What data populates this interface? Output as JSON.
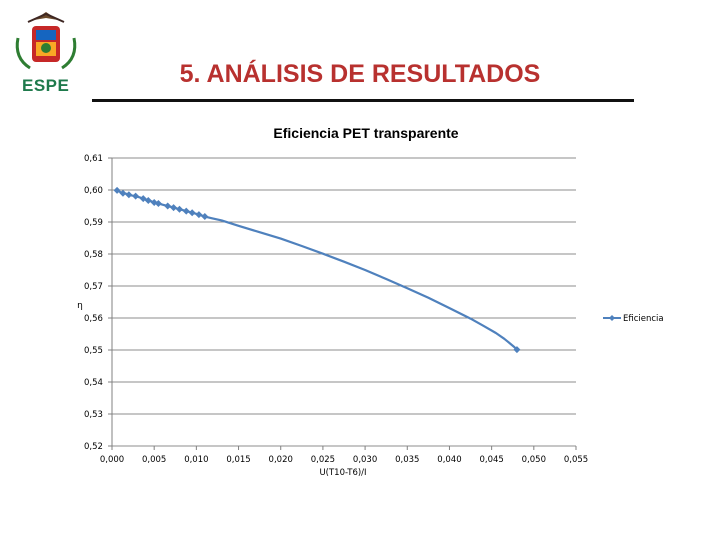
{
  "slide": {
    "title": "5. ANÁLISIS DE RESULTADOS",
    "logo_text": "ESPE"
  },
  "colors": {
    "title": "#b8312f",
    "logo_text": "#1f7a4c",
    "series": "#4f81bd"
  },
  "chart_data": {
    "type": "line",
    "title": "Eficiencia PET transparente",
    "xlabel": "U(T10-T6)/I",
    "ylabel": "η",
    "xlim": [
      0,
      0.055
    ],
    "ylim": [
      0.52,
      0.61
    ],
    "x_ticks": [
      "0,000",
      "0,005",
      "0,010",
      "0,015",
      "0,020",
      "0,025",
      "0,030",
      "0,035",
      "0,040",
      "0,045",
      "0,050",
      "0,055"
    ],
    "y_ticks": [
      "0,61",
      "0,60",
      "0,59",
      "0,58",
      "0,57",
      "0,56",
      "0,55",
      "0,54",
      "0,53",
      "0,52"
    ],
    "grid": "horizontal",
    "legend": "right",
    "series": [
      {
        "name": "Eficiencia",
        "x": [
          0.0006,
          0.001,
          0.0013,
          0.0017,
          0.002,
          0.0023,
          0.0028,
          0.0033,
          0.0037,
          0.004,
          0.0043,
          0.0047,
          0.005,
          0.0055,
          0.006,
          0.0066,
          0.0073,
          0.008,
          0.0088,
          0.0095,
          0.0103,
          0.011,
          0.0118,
          0.013,
          0.015,
          0.0175,
          0.02,
          0.0225,
          0.025,
          0.0275,
          0.03,
          0.0325,
          0.035,
          0.0375,
          0.04,
          0.0425,
          0.044,
          0.0455,
          0.0465,
          0.0472,
          0.0477,
          0.048
        ],
        "y": [
          0.5999,
          0.5993,
          0.599,
          0.5988,
          0.5985,
          0.5983,
          0.5981,
          0.5977,
          0.5973,
          0.597,
          0.5967,
          0.5964,
          0.5961,
          0.5958,
          0.5954,
          0.595,
          0.5945,
          0.594,
          0.5934,
          0.5929,
          0.5923,
          0.5917,
          0.5912,
          0.5905,
          0.5888,
          0.5868,
          0.5848,
          0.5825,
          0.5801,
          0.5776,
          0.575,
          0.5722,
          0.5693,
          0.5663,
          0.5631,
          0.5598,
          0.5576,
          0.5553,
          0.5535,
          0.552,
          0.5509,
          0.5501
        ],
        "markers": [
          0.0006,
          0.0013,
          0.002,
          0.0028,
          0.0037,
          0.0043,
          0.005,
          0.0055,
          0.0066,
          0.0073,
          0.008,
          0.0088,
          0.0095,
          0.0103,
          0.011,
          0.048
        ]
      }
    ]
  }
}
